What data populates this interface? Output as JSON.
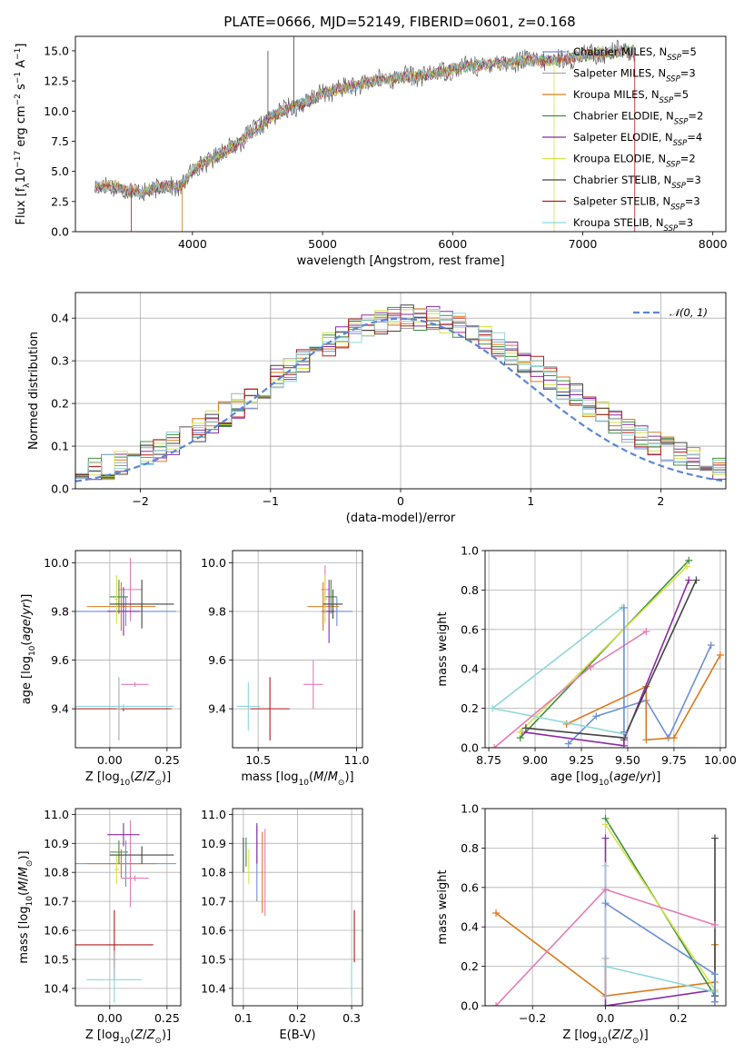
{
  "figure_title": "PLATE=0666, MJD=52149, FIBERID=0601, z=0.168",
  "colors": {
    "chabrier_miles": "#6b8fd6",
    "salpeter_miles": "#aaaaaa",
    "kroupa_miles": "#d97a1c",
    "chabrier_elodie": "#3f8f3f",
    "salpeter_elodie": "#8a2aa3",
    "kroupa_elodie": "#d4e34a",
    "chabrier_stelib": "#444444",
    "salpeter_stelib": "#b51b1b",
    "kroupa_stelib": "#8fd6da",
    "pink": "#e57bb5",
    "gauss": "#5b86d6"
  },
  "chart_data": [
    {
      "type": "line",
      "panel": "spectrum",
      "xlabel": "wavelength [Angstrom, rest frame]",
      "ylabel": "Flux [f_λ 10^-17 erg cm^-2 s^-1 A^-1]",
      "xlim": [
        3100,
        8100
      ],
      "ylim": [
        0,
        16.2
      ],
      "xticks": [
        "4000",
        "5000",
        "6000",
        "7000",
        "8000"
      ],
      "yticks": [
        "0.0",
        "2.5",
        "5.0",
        "7.5",
        "10.0",
        "12.5",
        "15.0"
      ],
      "legend_position": "right",
      "legend": [
        {
          "label": "Chabrier MILES, N",
          "sub": "SSP",
          "tail": "=5",
          "color_key": "chabrier_miles"
        },
        {
          "label": "Salpeter MILES, N",
          "sub": "SSP",
          "tail": "=3",
          "color_key": "salpeter_miles"
        },
        {
          "label": "Kroupa MILES, N",
          "sub": "SSP",
          "tail": "=5",
          "color_key": "kroupa_miles"
        },
        {
          "label": "Chabrier ELODIE, N",
          "sub": "SSP",
          "tail": "=2",
          "color_key": "chabrier_elodie"
        },
        {
          "label": "Salpeter ELODIE, N",
          "sub": "SSP",
          "tail": "=4",
          "color_key": "salpeter_elodie"
        },
        {
          "label": "Kroupa ELODIE, N",
          "sub": "SSP",
          "tail": "=2",
          "color_key": "kroupa_elodie"
        },
        {
          "label": "Chabrier STELIB, N",
          "sub": "SSP",
          "tail": "=3",
          "color_key": "chabrier_stelib"
        },
        {
          "label": "Salpeter STELIB, N",
          "sub": "SSP",
          "tail": "=3",
          "color_key": "salpeter_stelib"
        },
        {
          "label": "Kroupa STELIB, N",
          "sub": "SSP",
          "tail": "=3",
          "color_key": "kroupa_stelib"
        }
      ],
      "continuum": {
        "x": [
          3250,
          3400,
          3500,
          3600,
          3700,
          3800,
          3900,
          4000,
          4100,
          4200,
          4300,
          4400,
          4500,
          4600,
          4700,
          4800,
          4900,
          5000,
          5200,
          5400,
          5600,
          5800,
          6000,
          6200,
          6400,
          6600,
          6800,
          7000,
          7200,
          7400
        ],
        "y": [
          3.7,
          3.8,
          3.4,
          3.3,
          3.5,
          3.8,
          3.7,
          5.0,
          5.8,
          6.4,
          7.0,
          7.8,
          8.5,
          9.5,
          10.0,
          10.5,
          10.8,
          11.5,
          12.0,
          12.5,
          12.8,
          13.0,
          13.5,
          13.8,
          14.0,
          14.2,
          14.2,
          14.6,
          14.9,
          15.0
        ]
      },
      "noise_amplitude": 0.6,
      "spikes": [
        {
          "x": 3530,
          "y": 0.0,
          "color_key": "salpeter_stelib"
        },
        {
          "x": 3920,
          "y": 0.0,
          "color_key": "kroupa_miles"
        },
        {
          "x": 4580,
          "y": 15.0,
          "color_key": "chabrier_stelib"
        },
        {
          "x": 4780,
          "y": 16.2,
          "color_key": "chabrier_stelib"
        },
        {
          "x": 6780,
          "y": 0.0,
          "color_key": "kroupa_elodie"
        },
        {
          "x": 7400,
          "y": 0.0,
          "color_key": "salpeter_stelib"
        }
      ]
    },
    {
      "type": "line",
      "panel": "residual_histogram",
      "xlabel": "(data-model)/error",
      "ylabel": "Normed distribution",
      "xlim": [
        -2.5,
        2.5
      ],
      "ylim": [
        0,
        0.46
      ],
      "xticks": [
        "−2",
        "−1",
        "0",
        "1",
        "2"
      ],
      "yticks": [
        "0.0",
        "0.1",
        "0.2",
        "0.3",
        "0.4"
      ],
      "grid": true,
      "legend_position": "top-right",
      "gauss_label": "𝒩(0, 1)",
      "bin_width": 0.1,
      "bin_start": -2.5,
      "series_colors": [
        "chabrier_miles",
        "salpeter_miles",
        "kroupa_miles",
        "chabrier_elodie",
        "salpeter_elodie",
        "kroupa_elodie",
        "chabrier_stelib",
        "salpeter_stelib",
        "kroupa_stelib"
      ]
    },
    {
      "type": "scatter",
      "panel": "age_vs_Z",
      "xlabel": "Z [log10(Z/Z⊙)]",
      "ylabel": "age [log10(age/yr)]",
      "xlim": [
        -0.15,
        0.31
      ],
      "ylim": [
        9.24,
        10.05
      ],
      "xticks": [
        "0.00",
        "0.25"
      ],
      "yticks": [
        "9.4",
        "9.6",
        "9.8",
        "10.0"
      ],
      "points": [
        {
          "x": 0.07,
          "y": 9.8,
          "xerr": 0.22,
          "yerr": 0.06,
          "color_key": "chabrier_miles"
        },
        {
          "x": 0.09,
          "y": 9.89,
          "xerr": 0.05,
          "yerr": 0.13,
          "color_key": "pink"
        },
        {
          "x": 0.05,
          "y": 9.82,
          "xerr": 0.15,
          "yerr": 0.1,
          "color_key": "kroupa_miles"
        },
        {
          "x": 0.04,
          "y": 9.86,
          "xerr": 0.04,
          "yerr": 0.07,
          "color_key": "chabrier_elodie"
        },
        {
          "x": 0.06,
          "y": 9.8,
          "xerr": 0.07,
          "yerr": 0.1,
          "color_key": "salpeter_elodie"
        },
        {
          "x": 0.03,
          "y": 9.85,
          "xerr": 0.01,
          "yerr": 0.1,
          "color_key": "kroupa_elodie"
        },
        {
          "x": 0.14,
          "y": 9.83,
          "xerr": 0.14,
          "yerr": 0.1,
          "color_key": "chabrier_stelib"
        },
        {
          "x": 0.06,
          "y": 9.4,
          "xerr": 0.21,
          "yerr": 0.01,
          "color_key": "salpeter_stelib"
        },
        {
          "x": 0.06,
          "y": 9.41,
          "xerr": 0.22,
          "yerr": 0.01,
          "color_key": "kroupa_stelib"
        },
        {
          "x": 0.11,
          "y": 9.5,
          "xerr": 0.06,
          "yerr": 0.01,
          "color_key": "pink"
        },
        {
          "x": 0.04,
          "y": 9.4,
          "xerr": 0.01,
          "yerr": 0.13,
          "color_key": "salpeter_miles"
        }
      ]
    },
    {
      "type": "scatter",
      "panel": "age_vs_mass",
      "xlabel": "mass [log10(M/M⊙)]",
      "ylabel": "",
      "xlim": [
        10.37,
        11.03
      ],
      "ylim": [
        9.24,
        10.05
      ],
      "xticks": [
        "10.5",
        "11.0"
      ],
      "yticks": [
        "9.4",
        "9.6",
        "9.8",
        "10.0"
      ],
      "points": [
        {
          "x": 10.9,
          "y": 9.8,
          "xerr": 0.08,
          "yerr": 0.06,
          "color_key": "chabrier_miles"
        },
        {
          "x": 10.84,
          "y": 9.89,
          "xerr": 0.02,
          "yerr": 0.1,
          "color_key": "pink"
        },
        {
          "x": 10.83,
          "y": 9.82,
          "xerr": 0.08,
          "yerr": 0.1,
          "color_key": "kroupa_miles"
        },
        {
          "x": 10.87,
          "y": 9.86,
          "xerr": 0.03,
          "yerr": 0.07,
          "color_key": "chabrier_elodie"
        },
        {
          "x": 10.86,
          "y": 9.8,
          "xerr": 0.03,
          "yerr": 0.13,
          "color_key": "salpeter_elodie"
        },
        {
          "x": 10.84,
          "y": 9.85,
          "xerr": 0.01,
          "yerr": 0.1,
          "color_key": "kroupa_elodie"
        },
        {
          "x": 10.88,
          "y": 9.83,
          "xerr": 0.05,
          "yerr": 0.06,
          "color_key": "chabrier_stelib"
        },
        {
          "x": 10.56,
          "y": 9.4,
          "xerr": 0.1,
          "yerr": 0.13,
          "color_key": "salpeter_stelib"
        },
        {
          "x": 10.45,
          "y": 9.41,
          "xerr": 0.06,
          "yerr": 0.1,
          "color_key": "kroupa_stelib"
        },
        {
          "x": 10.78,
          "y": 9.5,
          "xerr": 0.05,
          "yerr": 0.1,
          "color_key": "pink"
        }
      ]
    },
    {
      "type": "line",
      "panel": "massweight_vs_age",
      "xlabel": "age [log10(age/yr)]",
      "ylabel": "mass weight",
      "xlim": [
        8.73,
        10.03
      ],
      "ylim": [
        0,
        1.0
      ],
      "xticks": [
        "8.75",
        "9.00",
        "9.25",
        "9.50",
        "9.75",
        "10.00"
      ],
      "yticks": [
        "0.0",
        "0.2",
        "0.4",
        "0.6",
        "0.8",
        "1.0"
      ],
      "grid": true,
      "series": [
        {
          "color_key": "chabrier_miles",
          "x": [
            9.95,
            9.72,
            9.6,
            9.33,
            9.18
          ],
          "y": [
            0.52,
            0.05,
            0.24,
            0.16,
            0.02
          ]
        },
        {
          "color_key": "kroupa_miles",
          "x": [
            10.0,
            9.75,
            9.6,
            9.6,
            9.17
          ],
          "y": [
            0.47,
            0.05,
            0.04,
            0.31,
            0.12
          ]
        },
        {
          "color_key": "chabrier_elodie",
          "x": [
            9.83,
            8.92
          ],
          "y": [
            0.95,
            0.05
          ]
        },
        {
          "color_key": "salpeter_elodie",
          "x": [
            9.83,
            9.48,
            9.48,
            8.93
          ],
          "y": [
            0.85,
            0.04,
            0.01,
            0.08
          ]
        },
        {
          "color_key": "kroupa_elodie",
          "x": [
            9.82,
            8.92
          ],
          "y": [
            0.92,
            0.08
          ]
        },
        {
          "color_key": "chabrier_stelib",
          "x": [
            9.87,
            9.48,
            8.95
          ],
          "y": [
            0.85,
            0.05,
            0.1
          ]
        },
        {
          "color_key": "kroupa_stelib",
          "x": [
            9.47,
            8.77,
            9.48
          ],
          "y": [
            0.71,
            0.2,
            0.07
          ]
        },
        {
          "color_key": "pink",
          "x": [
            9.6,
            9.3,
            8.78
          ],
          "y": [
            0.59,
            0.41,
            0.0
          ]
        },
        {
          "color_key": "chabrier_miles",
          "x": [
            9.48,
            9.48
          ],
          "y": [
            0.71,
            0.08
          ]
        }
      ]
    },
    {
      "type": "scatter",
      "panel": "mass_vs_Z",
      "xlabel": "Z [log10(Z/Z⊙)]",
      "ylabel": "mass [log10(M/M⊙)]",
      "xlim": [
        -0.15,
        0.31
      ],
      "ylim": [
        10.34,
        11.02
      ],
      "xticks": [
        "0.00",
        "0.25"
      ],
      "yticks": [
        "10.4",
        "10.5",
        "10.6",
        "10.7",
        "10.8",
        "10.9",
        "11.0"
      ],
      "points": [
        {
          "x": 0.07,
          "y": 10.83,
          "xerr": 0.22,
          "yerr": 0.08,
          "color_key": "chabrier_miles"
        },
        {
          "x": 0.09,
          "y": 10.83,
          "xerr": 0.05,
          "yerr": 0.15,
          "color_key": "pink"
        },
        {
          "x": 0.05,
          "y": 10.83,
          "xerr": 0.15,
          "yerr": 0.05,
          "color_key": "kroupa_miles"
        },
        {
          "x": 0.04,
          "y": 10.87,
          "xerr": 0.04,
          "yerr": 0.04,
          "color_key": "chabrier_elodie"
        },
        {
          "x": 0.06,
          "y": 10.93,
          "xerr": 0.07,
          "yerr": 0.04,
          "color_key": "salpeter_elodie"
        },
        {
          "x": 0.03,
          "y": 10.81,
          "xerr": 0.01,
          "yerr": 0.05,
          "color_key": "kroupa_elodie"
        },
        {
          "x": 0.14,
          "y": 10.86,
          "xerr": 0.14,
          "yerr": 0.03,
          "color_key": "chabrier_stelib"
        },
        {
          "x": 0.02,
          "y": 10.55,
          "xerr": 0.17,
          "yerr": 0.12,
          "color_key": "salpeter_stelib"
        },
        {
          "x": 0.02,
          "y": 10.43,
          "xerr": 0.12,
          "yerr": 0.08,
          "color_key": "kroupa_stelib"
        },
        {
          "x": 0.11,
          "y": 10.78,
          "xerr": 0.06,
          "yerr": 0.01,
          "color_key": "pink"
        },
        {
          "x": 0.02,
          "y": 10.5,
          "xerr": 0.01,
          "yerr": 0.03,
          "color_key": "salpeter_miles"
        }
      ]
    },
    {
      "type": "scatter",
      "panel": "mass_vs_EBV",
      "xlabel": "E(B-V)",
      "ylabel": "",
      "xlim": [
        0.08,
        0.32
      ],
      "ylim": [
        10.34,
        11.02
      ],
      "xticks": [
        "0.1",
        "0.2",
        "0.3"
      ],
      "yticks": [
        "10.4",
        "10.5",
        "10.6",
        "10.7",
        "10.8",
        "10.9",
        "11.0"
      ],
      "points": [
        {
          "x": 0.125,
          "y": 10.83,
          "xerr": 0,
          "yerr": 0.13,
          "color_key": "chabrier_miles"
        },
        {
          "x": 0.14,
          "y": 10.8,
          "xerr": 0,
          "yerr": 0.15,
          "color_key": "pink"
        },
        {
          "x": 0.135,
          "y": 10.8,
          "xerr": 0,
          "yerr": 0.14,
          "color_key": "kroupa_miles"
        },
        {
          "x": 0.105,
          "y": 10.87,
          "xerr": 0,
          "yerr": 0.05,
          "color_key": "chabrier_elodie"
        },
        {
          "x": 0.125,
          "y": 10.9,
          "xerr": 0,
          "yerr": 0.07,
          "color_key": "salpeter_elodie"
        },
        {
          "x": 0.11,
          "y": 10.82,
          "xerr": 0,
          "yerr": 0.06,
          "color_key": "kroupa_elodie"
        },
        {
          "x": 0.1,
          "y": 10.86,
          "xerr": 0,
          "yerr": 0.06,
          "color_key": "chabrier_stelib"
        },
        {
          "x": 0.305,
          "y": 10.58,
          "xerr": 0,
          "yerr": 0.09,
          "color_key": "salpeter_stelib"
        },
        {
          "x": 0.3,
          "y": 10.43,
          "xerr": 0,
          "yerr": 0.06,
          "color_key": "kroupa_stelib"
        }
      ]
    },
    {
      "type": "line",
      "panel": "massweight_vs_Z",
      "xlabel": "Z [log10(Z/Z⊙)]",
      "ylabel": "mass weight",
      "xlim": [
        -0.33,
        0.33
      ],
      "ylim": [
        0,
        1.0
      ],
      "xticks": [
        "−0.2",
        "0.0",
        "0.2"
      ],
      "yticks": [
        "0.0",
        "0.2",
        "0.4",
        "0.6",
        "0.8",
        "1.0"
      ],
      "grid": true,
      "series": [
        {
          "color_key": "kroupa_miles",
          "x": [
            -0.3,
            0.0,
            0.3,
            0.3
          ],
          "y": [
            0.47,
            0.05,
            0.12,
            0.31
          ]
        },
        {
          "color_key": "chabrier_elodie",
          "x": [
            0.0,
            0.3
          ],
          "y": [
            0.95,
            0.05
          ]
        },
        {
          "color_key": "salpeter_elodie",
          "x": [
            0.0,
            0.0,
            0.3,
            0.3
          ],
          "y": [
            0.85,
            0.0,
            0.08,
            0.02
          ]
        },
        {
          "color_key": "kroupa_elodie",
          "x": [
            0.0,
            0.3
          ],
          "y": [
            0.92,
            0.08
          ]
        },
        {
          "color_key": "chabrier_stelib",
          "x": [
            0.3,
            0.3
          ],
          "y": [
            0.85,
            0.05
          ]
        },
        {
          "color_key": "kroupa_stelib",
          "x": [
            0.0,
            0.0,
            0.3
          ],
          "y": [
            0.71,
            0.2,
            0.07
          ]
        },
        {
          "color_key": "chabrier_miles",
          "x": [
            0.0,
            0.3,
            0.3
          ],
          "y": [
            0.52,
            0.16,
            0.02
          ]
        },
        {
          "color_key": "pink",
          "x": [
            -0.3,
            0.0,
            0.3
          ],
          "y": [
            0.0,
            0.59,
            0.41
          ]
        },
        {
          "color_key": "salpeter_miles",
          "x": [
            0.0,
            0.0
          ],
          "y": [
            0.24,
            0.05
          ]
        }
      ]
    }
  ]
}
